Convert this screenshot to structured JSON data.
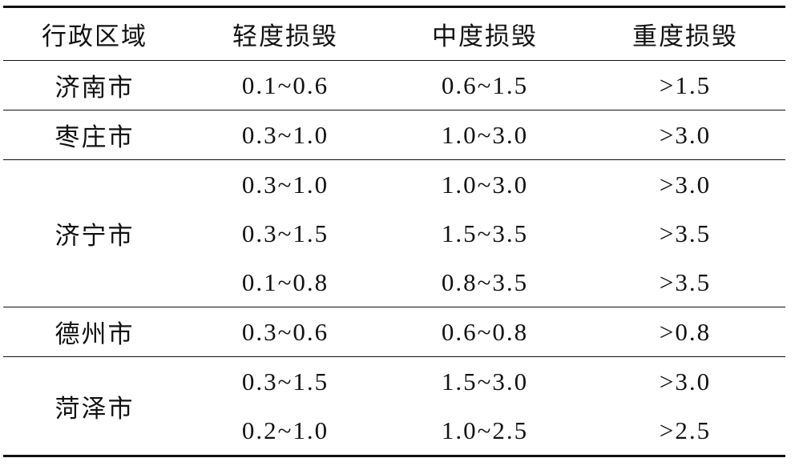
{
  "table": {
    "header": [
      "行政区域",
      "轻度损毁",
      "中度损毁",
      "重度损毁"
    ],
    "groups": [
      {
        "region": "济南市",
        "rows": [
          [
            "0.1~0.6",
            "0.6~1.5",
            ">1.5"
          ]
        ]
      },
      {
        "region": "枣庄市",
        "rows": [
          [
            "0.3~1.0",
            "1.0~3.0",
            ">3.0"
          ]
        ]
      },
      {
        "region": "济宁市",
        "rows": [
          [
            "0.3~1.0",
            "1.0~3.0",
            ">3.0"
          ],
          [
            "0.3~1.5",
            "1.5~3.5",
            ">3.5"
          ],
          [
            "0.1~0.8",
            "0.8~3.5",
            ">3.5"
          ]
        ]
      },
      {
        "region": "德州市",
        "rows": [
          [
            "0.3~0.6",
            "0.6~0.8",
            ">0.8"
          ]
        ]
      },
      {
        "region": "菏泽市",
        "rows": [
          [
            "0.3~1.5",
            "1.5~3.0",
            ">3.0"
          ],
          [
            "0.2~1.0",
            "1.0~2.5",
            ">2.5"
          ]
        ]
      }
    ]
  }
}
